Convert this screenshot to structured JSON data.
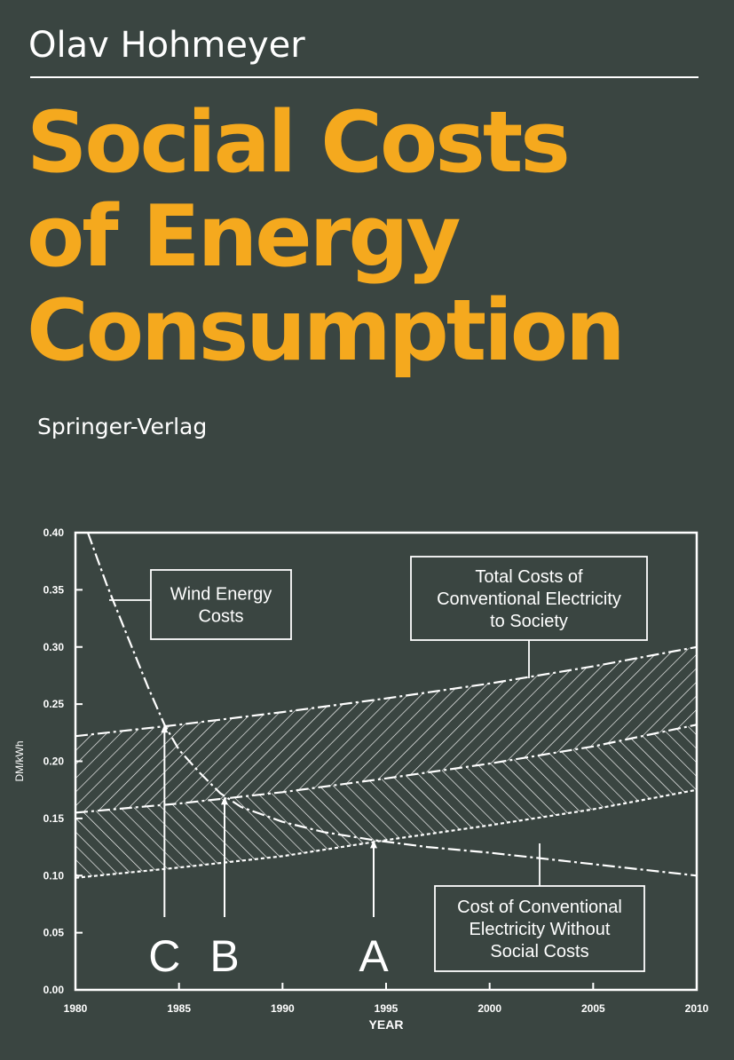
{
  "cover": {
    "author": "Olav Hohmeyer",
    "title_lines": [
      "Social Costs",
      "of Energy",
      "Consumption"
    ],
    "publisher": "Springer-Verlag"
  },
  "colors": {
    "background": "#3a4541",
    "title": "#f5a91e",
    "foreground": "#ffffff"
  },
  "chart_data": {
    "type": "line",
    "xlabel": "YEAR",
    "ylabel": "DM/kWh",
    "xlim": [
      1980,
      2010
    ],
    "ylim": [
      0,
      0.4
    ],
    "x_ticks": [
      "1980",
      "1985",
      "1990",
      "1995",
      "2000",
      "2005",
      "2010"
    ],
    "y_ticks": [
      "0.00",
      "0.05",
      "0.10",
      "0.15",
      "0.20",
      "0.25",
      "0.30",
      "0.35",
      "0.40"
    ],
    "series": [
      {
        "key": "total",
        "style": "dash-dot",
        "x": [
          1980,
          1985,
          1990,
          1995,
          2000,
          2005,
          2010
        ],
        "y": [
          0.222,
          0.232,
          0.243,
          0.255,
          0.268,
          0.283,
          0.3
        ]
      },
      {
        "key": "middle",
        "style": "dash-dot",
        "x": [
          1980,
          1985,
          1990,
          1995,
          2000,
          2005,
          2010
        ],
        "y": [
          0.155,
          0.163,
          0.173,
          0.185,
          0.198,
          0.213,
          0.232
        ]
      },
      {
        "key": "conventional",
        "style": "dotted",
        "x": [
          1980,
          1985,
          1990,
          1995,
          2000,
          2005,
          2010
        ],
        "y": [
          0.098,
          0.107,
          0.117,
          0.131,
          0.144,
          0.158,
          0.175
        ]
      },
      {
        "key": "wind",
        "style": "dash-dot",
        "x": [
          1980.6,
          1981.5,
          1982.5,
          1983.5,
          1984.3,
          1985,
          1986,
          1987,
          1988,
          1990,
          1992,
          1994.4,
          1997,
          2000,
          2003,
          2006,
          2010
        ],
        "y": [
          0.4,
          0.355,
          0.31,
          0.265,
          0.232,
          0.21,
          0.19,
          0.172,
          0.16,
          0.147,
          0.138,
          0.131,
          0.125,
          0.12,
          0.114,
          0.108,
          0.1
        ]
      }
    ],
    "callouts": [
      {
        "name": "wind-energy-callout",
        "lines": [
          "Wind Energy",
          "Costs"
        ]
      },
      {
        "name": "total-costs-callout",
        "lines": [
          "Total Costs of",
          "Conventional Electricity",
          "to Society"
        ]
      },
      {
        "name": "conventional-cost-callout",
        "lines": [
          "Cost of Conventional",
          "Electricity Without",
          "Social Costs"
        ]
      }
    ],
    "markers": [
      {
        "label": "C",
        "x": 1984.3,
        "y": 0.232
      },
      {
        "label": "B",
        "x": 1987.2,
        "y": 0.169
      },
      {
        "label": "A",
        "x": 1994.4,
        "y": 0.131
      }
    ]
  }
}
